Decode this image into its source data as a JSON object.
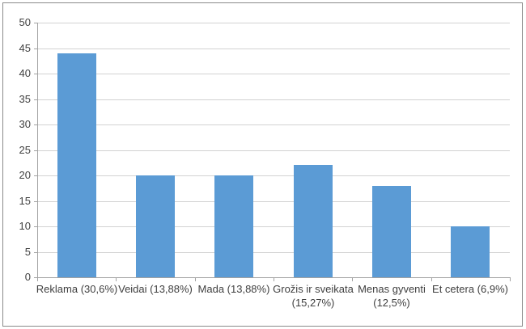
{
  "chart_data": {
    "type": "bar",
    "title": "",
    "xlabel": "",
    "ylabel": "",
    "categories": [
      "Reklama (30,6%)",
      "Veidai (13,88%)",
      "Mada (13,88%)",
      "Grožis ir sveikata\n(15,27%)",
      "Menas gyventi\n(12,5%)",
      "Et cetera (6,9%)"
    ],
    "values": [
      44,
      20,
      20,
      22,
      18,
      10
    ],
    "ylim": [
      0,
      50
    ],
    "y_ticks": [
      0,
      5,
      10,
      15,
      20,
      25,
      30,
      35,
      40,
      45,
      50
    ],
    "grid": true,
    "legend": false
  },
  "colors": {
    "bar": "#5b9bd5",
    "gridline": "#d2d2d2",
    "axis": "#a3a3a3",
    "text": "#3f3f3f",
    "frame_border": "#8a8a8a",
    "background": "#ffffff"
  }
}
